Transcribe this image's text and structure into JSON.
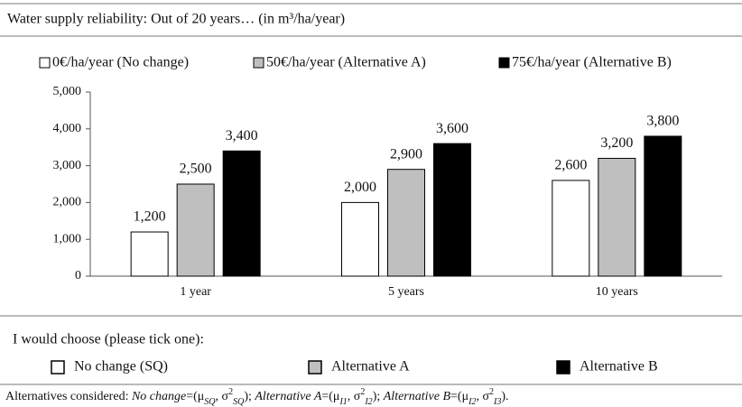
{
  "chart_data": {
    "type": "bar",
    "title": "Water supply reliability: Out of 20 years… (in m³/ha/year)",
    "categories": [
      "1 year",
      "5 years",
      "10 years"
    ],
    "series": [
      {
        "name": "0€/ha/year (No change)",
        "color": "#ffffff",
        "values": [
          1200,
          2000,
          2600
        ],
        "value_labels": [
          "1,200",
          "2,000",
          "2,600"
        ]
      },
      {
        "name": "50€/ha/year (Alternative A)",
        "color": "#bfbfbf",
        "values": [
          2500,
          2900,
          3200
        ],
        "value_labels": [
          "2,500",
          "2,900",
          "3,200"
        ]
      },
      {
        "name": "75€/ha/year (Alternative B)",
        "color": "#000000",
        "values": [
          3400,
          3600,
          3800
        ],
        "value_labels": [
          "3,400",
          "3,600",
          "3,800"
        ]
      }
    ],
    "ylim": [
      0,
      5000
    ],
    "yticks": [
      0,
      {
        "value": 1000,
        "label": "1,000"
      },
      {
        "value": 2000,
        "label": "2,000"
      },
      {
        "value": 3000,
        "label": "3,000"
      },
      {
        "value": 4000,
        "label": "4,000"
      },
      {
        "value": 5000,
        "label": "5,000"
      }
    ],
    "grid": false,
    "legend": "top"
  },
  "choice": {
    "prompt": "I would choose (please tick one):",
    "options": [
      {
        "label": "No change (SQ)",
        "color": "#ffffff"
      },
      {
        "label": "Alternative A",
        "color": "#bfbfbf"
      },
      {
        "label": "Alternative B",
        "color": "#000000"
      }
    ]
  },
  "footnote": [
    {
      "text": "Alternatives considered: ",
      "style": "normal"
    },
    {
      "text": "No change",
      "style": "italic"
    },
    {
      "text": "=(μ",
      "style": "normal"
    },
    {
      "text": "SQ",
      "style": "sub"
    },
    {
      "text": ", σ",
      "style": "normal"
    },
    {
      "text": "2",
      "style": "sup"
    },
    {
      "text": "SQ",
      "style": "sub"
    },
    {
      "text": "); ",
      "style": "normal"
    },
    {
      "text": "Alternative A",
      "style": "italic"
    },
    {
      "text": "=(μ",
      "style": "normal"
    },
    {
      "text": "I1",
      "style": "sub"
    },
    {
      "text": ", σ",
      "style": "normal"
    },
    {
      "text": "2",
      "style": "sup"
    },
    {
      "text": "I2",
      "style": "sub"
    },
    {
      "text": "); ",
      "style": "normal"
    },
    {
      "text": "Alternative B",
      "style": "italic"
    },
    {
      "text": "=(μ",
      "style": "normal"
    },
    {
      "text": "I2",
      "style": "sub"
    },
    {
      "text": ", σ",
      "style": "normal"
    },
    {
      "text": "2",
      "style": "sup"
    },
    {
      "text": "I3",
      "style": "sub"
    },
    {
      "text": ").",
      "style": "normal"
    }
  ]
}
